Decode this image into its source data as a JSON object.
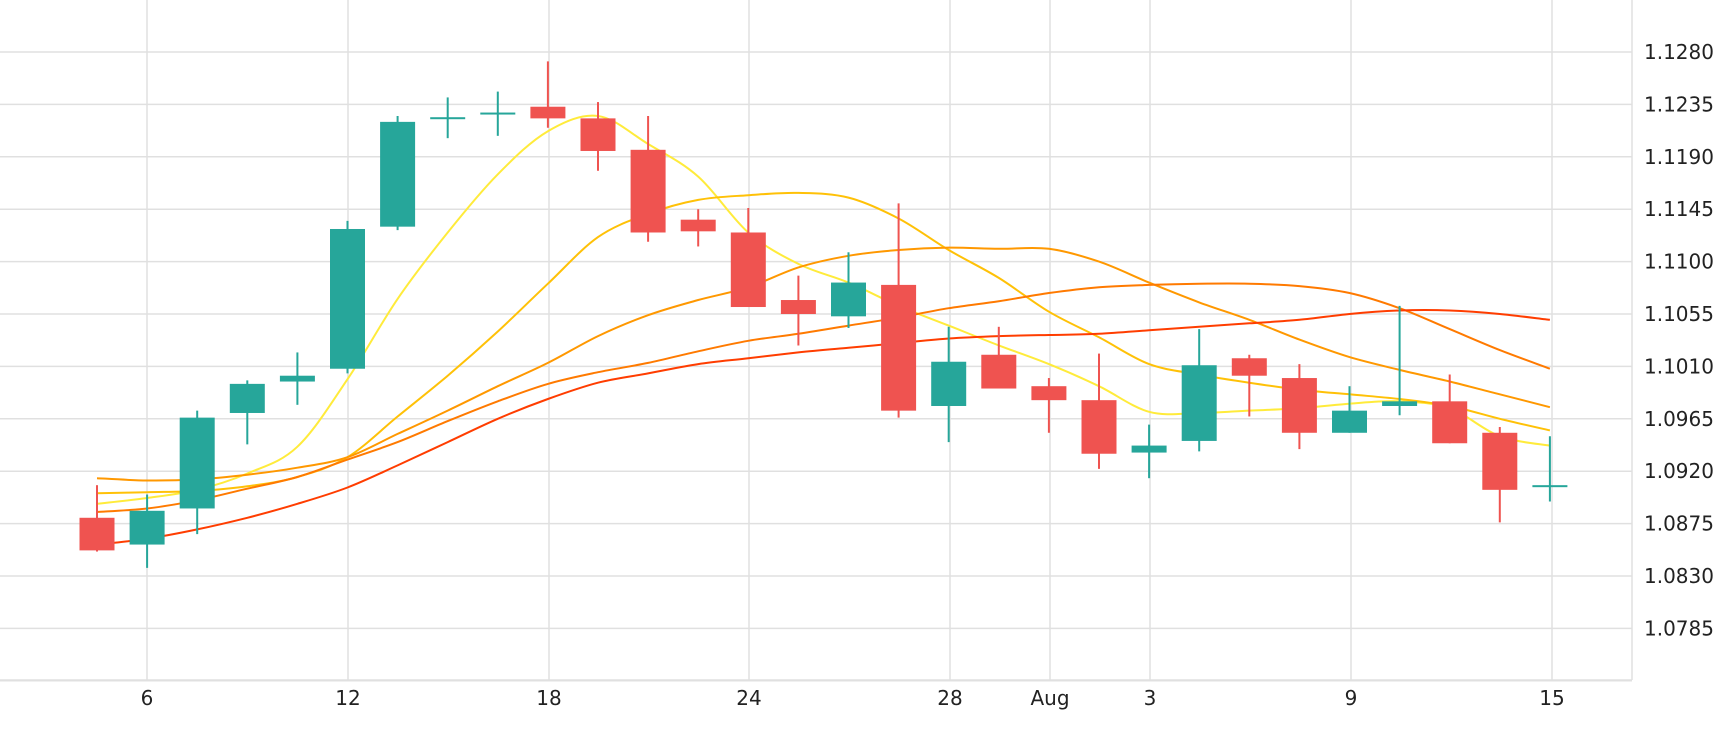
{
  "chart_data": {
    "type": "candlestick",
    "y_axis": {
      "position": "right",
      "tick_labels": [
        "1.1280",
        "1.1235",
        "1.1190",
        "1.1145",
        "1.1100",
        "1.1055",
        "1.1010",
        "1.0965",
        "1.0920",
        "1.0875",
        "1.0830",
        "1.0785"
      ],
      "range": [
        1.0738,
        1.1325
      ]
    },
    "x_axis": {
      "tick_labels": [
        "6",
        "12",
        "18",
        "24",
        "28",
        "Aug",
        "3",
        "9",
        "15"
      ]
    },
    "grid": true,
    "colors": {
      "up": "#26a69a",
      "down": "#ef5350",
      "ma_5": "#ffeb3b",
      "ma_10": "#ffc107",
      "ma_20": "#ff9800",
      "ma_30": "#ff7a00",
      "ma_60": "#ff3d00",
      "grid": "#e0e0e0"
    },
    "candles": [
      {
        "open": 1.088,
        "high": 1.0908,
        "low": 1.0851,
        "close": 1.0852
      },
      {
        "open": 1.0857,
        "high": 1.09,
        "low": 1.0837,
        "close": 1.0886
      },
      {
        "open": 1.0888,
        "high": 1.0972,
        "low": 1.0866,
        "close": 1.0966
      },
      {
        "open": 1.097,
        "high": 1.0998,
        "low": 1.0943,
        "close": 1.0995
      },
      {
        "open": 1.0997,
        "high": 1.1022,
        "low": 1.0977,
        "close": 1.1002
      },
      {
        "open": 1.1008,
        "high": 1.1135,
        "low": 1.1004,
        "close": 1.1128
      },
      {
        "open": 1.113,
        "high": 1.1225,
        "low": 1.1127,
        "close": 1.122
      },
      {
        "open": 1.1223,
        "high": 1.1241,
        "low": 1.1206,
        "close": 1.1224
      },
      {
        "open": 1.1228,
        "high": 1.1246,
        "low": 1.1208,
        "close": 1.1228
      },
      {
        "open": 1.1233,
        "high": 1.1272,
        "low": 1.1215,
        "close": 1.1223
      },
      {
        "open": 1.1223,
        "high": 1.1237,
        "low": 1.1178,
        "close": 1.1195
      },
      {
        "open": 1.1196,
        "high": 1.1225,
        "low": 1.1117,
        "close": 1.1125
      },
      {
        "open": 1.1136,
        "high": 1.1145,
        "low": 1.1113,
        "close": 1.1126
      },
      {
        "open": 1.1125,
        "high": 1.1146,
        "low": 1.1066,
        "close": 1.1061
      },
      {
        "open": 1.1067,
        "high": 1.1088,
        "low": 1.1028,
        "close": 1.1055
      },
      {
        "open": 1.1053,
        "high": 1.1108,
        "low": 1.1043,
        "close": 1.1082
      },
      {
        "open": 1.108,
        "high": 1.115,
        "low": 1.0966,
        "close": 1.0972
      },
      {
        "open": 1.0976,
        "high": 1.1044,
        "low": 1.0945,
        "close": 1.1014
      },
      {
        "open": 1.102,
        "high": 1.1044,
        "low": 1.0993,
        "close": 1.0991
      },
      {
        "open": 1.0993,
        "high": 1.1,
        "low": 1.0953,
        "close": 1.0981
      },
      {
        "open": 1.0981,
        "high": 1.1021,
        "low": 1.0922,
        "close": 1.0935
      },
      {
        "open": 1.0936,
        "high": 1.096,
        "low": 1.0914,
        "close": 1.0942
      },
      {
        "open": 1.0946,
        "high": 1.1042,
        "low": 1.0937,
        "close": 1.1011
      },
      {
        "open": 1.1017,
        "high": 1.102,
        "low": 1.0967,
        "close": 1.1002
      },
      {
        "open": 1.1,
        "high": 1.1012,
        "low": 1.0939,
        "close": 1.0953
      },
      {
        "open": 1.0953,
        "high": 1.0993,
        "low": 1.0953,
        "close": 1.0972
      },
      {
        "open": 1.0976,
        "high": 1.1062,
        "low": 1.0968,
        "close": 1.098
      },
      {
        "open": 1.098,
        "high": 1.1003,
        "low": 1.0944,
        "close": 1.0944
      },
      {
        "open": 1.0953,
        "high": 1.0958,
        "low": 1.0876,
        "close": 1.0904
      },
      {
        "open": 1.0908,
        "high": 1.095,
        "low": 1.0894,
        "close": 1.0908
      }
    ],
    "moving_averages": [
      {
        "key": "ma_5",
        "values": [
          1.0892,
          1.0897,
          1.0904,
          1.0918,
          1.0941,
          1.0999,
          1.1068,
          1.1125,
          1.1175,
          1.1212,
          1.1225,
          1.1201,
          1.1173,
          1.1125,
          1.1098,
          1.1082,
          1.1062,
          1.1045,
          1.1028,
          1.1012,
          1.0993,
          1.0971,
          1.097,
          1.0972,
          1.0974,
          1.0978,
          1.098,
          1.0974,
          1.095,
          1.0942
        ]
      },
      {
        "key": "ma_10",
        "values": [
          1.0901,
          1.0902,
          1.0903,
          1.0907,
          1.0915,
          1.0932,
          1.0967,
          1.1002,
          1.104,
          1.1081,
          1.1121,
          1.1141,
          1.1153,
          1.1157,
          1.1159,
          1.1155,
          1.1137,
          1.111,
          1.1086,
          1.1057,
          1.1035,
          1.1012,
          1.1003,
          1.0996,
          1.099,
          1.0986,
          1.0982,
          1.0976,
          1.0965,
          1.0955
        ]
      },
      {
        "key": "ma_20",
        "values": [
          1.0914,
          1.0912,
          1.0913,
          1.0917,
          1.0923,
          1.0932,
          1.0952,
          1.0972,
          1.0993,
          1.1013,
          1.1036,
          1.1054,
          1.1067,
          1.1078,
          1.1095,
          1.1105,
          1.111,
          1.1112,
          1.1111,
          1.1111,
          1.11,
          1.1082,
          1.1065,
          1.105,
          1.1033,
          1.1018,
          1.1007,
          1.0997,
          1.0986,
          1.0975
        ]
      },
      {
        "key": "ma_30",
        "values": [
          1.0885,
          1.0888,
          1.0895,
          1.0905,
          1.0915,
          1.093,
          1.0945,
          1.0963,
          1.098,
          1.0995,
          1.1005,
          1.1013,
          1.1023,
          1.1032,
          1.1038,
          1.1045,
          1.1052,
          1.106,
          1.1066,
          1.1073,
          1.1078,
          1.108,
          1.1081,
          1.1081,
          1.1079,
          1.1073,
          1.106,
          1.1042,
          1.1024,
          1.1008
        ]
      },
      {
        "key": "ma_60",
        "values": [
          1.0857,
          1.0862,
          1.087,
          1.088,
          1.0892,
          1.0906,
          1.0925,
          1.0945,
          1.0965,
          1.0982,
          1.0996,
          1.1004,
          1.1012,
          1.1017,
          1.1022,
          1.1026,
          1.103,
          1.1034,
          1.1036,
          1.1037,
          1.1038,
          1.1041,
          1.1044,
          1.1047,
          1.105,
          1.1055,
          1.1058,
          1.1058,
          1.1055,
          1.105
        ]
      }
    ]
  }
}
